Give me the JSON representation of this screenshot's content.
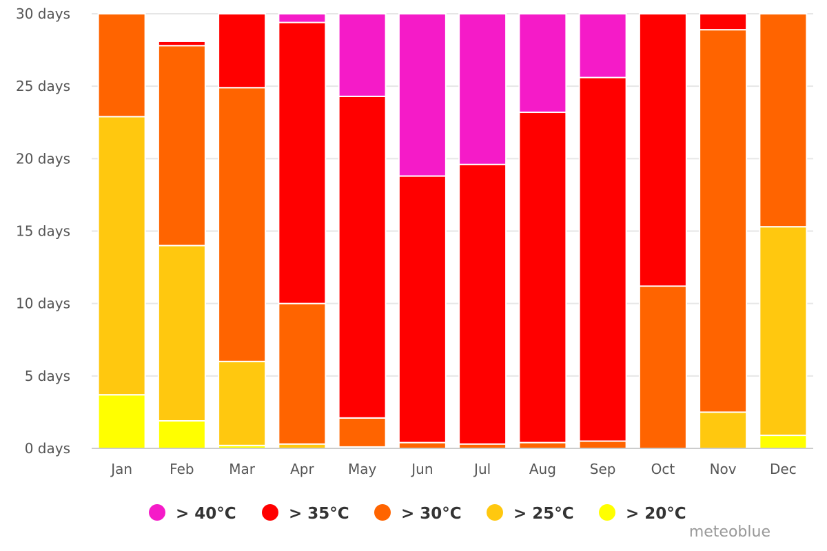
{
  "chart_data": {
    "type": "bar",
    "stacked": true,
    "categories": [
      "Jan",
      "Feb",
      "Mar",
      "Apr",
      "May",
      "Jun",
      "Jul",
      "Aug",
      "Sep",
      "Oct",
      "Nov",
      "Dec"
    ],
    "ylim": [
      0,
      30
    ],
    "yticks": [
      0,
      5,
      10,
      15,
      20,
      25,
      30
    ],
    "ytick_suffix": " days",
    "grid": true,
    "legend_position": "bottom",
    "series": [
      {
        "name": "> 20°C",
        "color": "#ffff00",
        "values": [
          3.7,
          1.9,
          0.2,
          0,
          0,
          0,
          0,
          0,
          0,
          0,
          0,
          0.9
        ]
      },
      {
        "name": "> 25°C",
        "color": "#ffc80f",
        "values": [
          19.2,
          12.1,
          5.8,
          0.3,
          0.1,
          0,
          0,
          0,
          0,
          0,
          2.5,
          14.4
        ]
      },
      {
        "name": "> 30°C",
        "color": "#ff6400",
        "values": [
          7.1,
          13.8,
          18.9,
          9.7,
          2.0,
          0.4,
          0.3,
          0.4,
          0.5,
          11.2,
          26.4,
          14.7
        ]
      },
      {
        "name": "> 35°C",
        "color": "#ff0000",
        "values": [
          0,
          0.3,
          5.1,
          19.4,
          22.2,
          18.4,
          19.3,
          22.8,
          25.1,
          18.8,
          1.1,
          0
        ]
      },
      {
        "name": "> 40°C",
        "color": "#f51bc8",
        "values": [
          0,
          0,
          0,
          0.6,
          5.7,
          11.2,
          10.4,
          6.8,
          4.4,
          0,
          0,
          0
        ]
      }
    ],
    "legend_order": [
      "> 40°C",
      "> 35°C",
      "> 30°C",
      "> 25°C",
      "> 20°C"
    ],
    "credit": "meteoblue"
  }
}
